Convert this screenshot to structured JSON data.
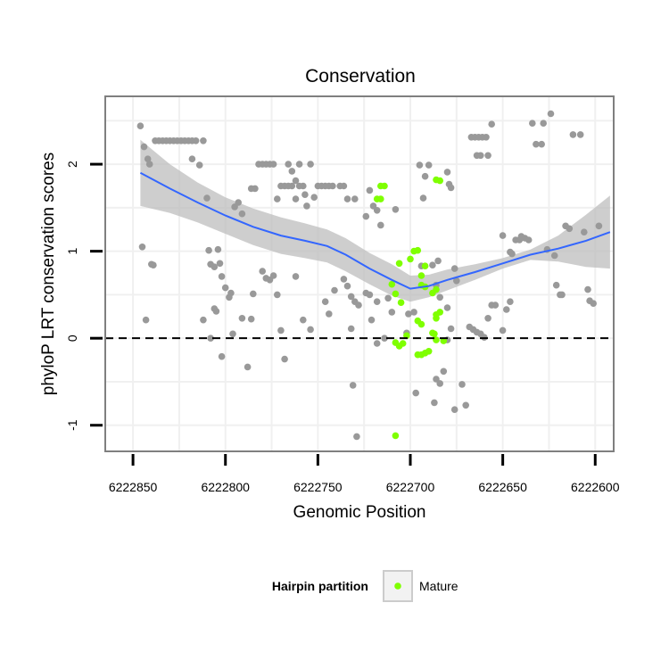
{
  "chart_data": {
    "type": "scatter",
    "title": "Conservation",
    "xlabel": "Genomic Position",
    "ylabel": "phyloP LRT conservation scores",
    "x_reversed": true,
    "xlim": [
      6222865,
      6222590
    ],
    "ylim": [
      -1.3,
      2.78
    ],
    "x_ticks": [
      6222850,
      6222800,
      6222750,
      6222700,
      6222650,
      6222600
    ],
    "x_tick_labels": [
      "6222850",
      "6222800",
      "6222750",
      "6222700",
      "6222650",
      "6222600"
    ],
    "y_ticks": [
      -1,
      0,
      1,
      2
    ],
    "y_tick_labels": [
      "-1",
      "0",
      "1",
      "2"
    ],
    "reference_line": {
      "y": 0,
      "style": "dashed",
      "color": "#000000"
    },
    "colors": {
      "panel_bg": "#ffffff",
      "grid": "#f0f0f0",
      "panel_border": "#7f7f7f",
      "points_default": "#999999",
      "points_mature": "#7fff00",
      "smooth_line": "#3366ff",
      "ribbon": "#bdbdbd"
    },
    "legend": {
      "title": "Hairpin partition",
      "position": "bottom",
      "entries": [
        {
          "label": "Mature",
          "color": "#7fff00"
        }
      ]
    },
    "series": [
      {
        "name": "Other",
        "color": "#999999",
        "points": [
          [
            6222846,
            2.44
          ],
          [
            6222844,
            2.2
          ],
          [
            6222842,
            2.06
          ],
          [
            6222841,
            2.0
          ],
          [
            6222845,
            1.05
          ],
          [
            6222843,
            0.21
          ],
          [
            6222840,
            0.85
          ],
          [
            6222839,
            0.84
          ],
          [
            6222838,
            2.27
          ],
          [
            6222836,
            2.27
          ],
          [
            6222834,
            2.27
          ],
          [
            6222832,
            2.27
          ],
          [
            6222830,
            2.27
          ],
          [
            6222828,
            2.27
          ],
          [
            6222826,
            2.27
          ],
          [
            6222824,
            2.27
          ],
          [
            6222822,
            2.27
          ],
          [
            6222820,
            2.27
          ],
          [
            6222818,
            2.27
          ],
          [
            6222816,
            2.27
          ],
          [
            6222812,
            2.27
          ],
          [
            6222818,
            2.06
          ],
          [
            6222814,
            1.99
          ],
          [
            6222810,
            1.61
          ],
          [
            6222809,
            1.01
          ],
          [
            6222808,
            0.85
          ],
          [
            6222806,
            0.82
          ],
          [
            6222804,
            1.02
          ],
          [
            6222806,
            0.34
          ],
          [
            6222805,
            0.31
          ],
          [
            6222803,
            0.86
          ],
          [
            6222802,
            0.71
          ],
          [
            6222812,
            0.21
          ],
          [
            6222808,
            0.0
          ],
          [
            6222802,
            -0.21
          ],
          [
            6222800,
            0.58
          ],
          [
            6222798,
            0.47
          ],
          [
            6222797,
            0.52
          ],
          [
            6222796,
            0.05
          ],
          [
            6222795,
            1.51
          ],
          [
            6222793,
            1.56
          ],
          [
            6222791,
            1.43
          ],
          [
            6222791,
            0.23
          ],
          [
            6222788,
            -0.33
          ],
          [
            6222786,
            1.72
          ],
          [
            6222784,
            1.72
          ],
          [
            6222785,
            0.51
          ],
          [
            6222786,
            0.22
          ],
          [
            6222782,
            2.0
          ],
          [
            6222780,
            2.0
          ],
          [
            6222778,
            2.0
          ],
          [
            6222776,
            2.0
          ],
          [
            6222774,
            2.0
          ],
          [
            6222780,
            0.77
          ],
          [
            6222778,
            0.69
          ],
          [
            6222776,
            0.67
          ],
          [
            6222774,
            0.72
          ],
          [
            6222772,
            0.5
          ],
          [
            6222770,
            0.09
          ],
          [
            6222768,
            -0.24
          ],
          [
            6222772,
            1.6
          ],
          [
            6222770,
            1.75
          ],
          [
            6222768,
            1.75
          ],
          [
            6222766,
            1.75
          ],
          [
            6222764,
            1.75
          ],
          [
            6222762,
            1.6
          ],
          [
            6222764,
            1.92
          ],
          [
            6222766,
            2.0
          ],
          [
            6222762,
            1.81
          ],
          [
            6222760,
            1.75
          ],
          [
            6222758,
            1.75
          ],
          [
            6222757,
            1.65
          ],
          [
            6222760,
            2.0
          ],
          [
            6222754,
            2.0
          ],
          [
            6222756,
            1.52
          ],
          [
            6222762,
            0.71
          ],
          [
            6222758,
            0.21
          ],
          [
            6222754,
            0.1
          ],
          [
            6222750,
            1.75
          ],
          [
            6222748,
            1.75
          ],
          [
            6222752,
            1.62
          ],
          [
            6222746,
            1.75
          ],
          [
            6222744,
            1.75
          ],
          [
            6222742,
            1.75
          ],
          [
            6222738,
            1.75
          ],
          [
            6222736,
            1.75
          ],
          [
            6222734,
            1.6
          ],
          [
            6222746,
            0.42
          ],
          [
            6222744,
            0.28
          ],
          [
            6222741,
            0.55
          ],
          [
            6222736,
            0.68
          ],
          [
            6222734,
            0.6
          ],
          [
            6222732,
            0.48
          ],
          [
            6222730,
            0.42
          ],
          [
            6222730,
            1.6
          ],
          [
            6222728,
            0.38
          ],
          [
            6222732,
            0.11
          ],
          [
            6222731,
            -0.54
          ],
          [
            6222729,
            -1.13
          ],
          [
            6222724,
            1.4
          ],
          [
            6222722,
            1.7
          ],
          [
            6222720,
            1.52
          ],
          [
            6222718,
            1.47
          ],
          [
            6222716,
            1.3
          ],
          [
            6222724,
            0.52
          ],
          [
            6222722,
            0.5
          ],
          [
            6222721,
            0.21
          ],
          [
            6222718,
            0.42
          ],
          [
            6222718,
            -0.06
          ],
          [
            6222714,
            0.0
          ],
          [
            6222712,
            0.46
          ],
          [
            6222710,
            0.3
          ],
          [
            6222708,
            1.48
          ],
          [
            6222701,
            0.28
          ],
          [
            6222702,
            0.06
          ],
          [
            6222698,
            0.3
          ],
          [
            6222697,
            -0.63
          ],
          [
            6222695,
            1.99
          ],
          [
            6222693,
            1.61
          ],
          [
            6222692,
            1.86
          ],
          [
            6222690,
            1.99
          ],
          [
            6222694,
            0.83
          ],
          [
            6222688,
            0.84
          ],
          [
            6222685,
            0.89
          ],
          [
            6222686,
            0.61
          ],
          [
            6222684,
            0.47
          ],
          [
            6222680,
            1.91
          ],
          [
            6222679,
            1.77
          ],
          [
            6222678,
            1.73
          ],
          [
            6222676,
            0.8
          ],
          [
            6222675,
            0.66
          ],
          [
            6222680,
            0.35
          ],
          [
            6222678,
            0.11
          ],
          [
            6222687,
            -0.74
          ],
          [
            6222684,
            -0.52
          ],
          [
            6222686,
            -0.47
          ],
          [
            6222682,
            -0.38
          ],
          [
            6222680,
            -0.02
          ],
          [
            6222676,
            -0.82
          ],
          [
            6222672,
            -0.53
          ],
          [
            6222670,
            -0.77
          ],
          [
            6222668,
            0.13
          ],
          [
            6222667,
            2.31
          ],
          [
            6222665,
            2.31
          ],
          [
            6222663,
            2.31
          ],
          [
            6222661,
            2.31
          ],
          [
            6222659,
            2.31
          ],
          [
            6222664,
            2.1
          ],
          [
            6222662,
            2.1
          ],
          [
            6222658,
            2.1
          ],
          [
            6222656,
            2.46
          ],
          [
            6222666,
            0.1
          ],
          [
            6222664,
            0.07
          ],
          [
            6222662,
            0.05
          ],
          [
            6222660,
            0.01
          ],
          [
            6222658,
            0.23
          ],
          [
            6222656,
            0.38
          ],
          [
            6222654,
            0.38
          ],
          [
            6222650,
            0.09
          ],
          [
            6222648,
            0.33
          ],
          [
            6222646,
            0.42
          ],
          [
            6222650,
            1.18
          ],
          [
            6222646,
            0.99
          ],
          [
            6222645,
            0.97
          ],
          [
            6222643,
            1.13
          ],
          [
            6222641,
            1.13
          ],
          [
            6222640,
            1.17
          ],
          [
            6222638,
            1.15
          ],
          [
            6222636,
            1.13
          ],
          [
            6222634,
            2.47
          ],
          [
            6222632,
            2.23
          ],
          [
            6222629,
            2.23
          ],
          [
            6222628,
            2.47
          ],
          [
            6222624,
            2.58
          ],
          [
            6222626,
            1.02
          ],
          [
            6222622,
            0.95
          ],
          [
            6222621,
            0.61
          ],
          [
            6222619,
            0.5
          ],
          [
            6222618,
            0.5
          ],
          [
            6222616,
            1.29
          ],
          [
            6222614,
            1.26
          ],
          [
            6222612,
            2.34
          ],
          [
            6222608,
            2.34
          ],
          [
            6222606,
            1.22
          ],
          [
            6222604,
            0.56
          ],
          [
            6222603,
            0.43
          ],
          [
            6222601,
            0.4
          ],
          [
            6222598,
            1.29
          ]
        ]
      },
      {
        "name": "Mature",
        "color": "#7fff00",
        "points": [
          [
            6222716,
            1.75
          ],
          [
            6222714,
            1.75
          ],
          [
            6222718,
            1.6
          ],
          [
            6222716,
            1.6
          ],
          [
            6222706,
            0.86
          ],
          [
            6222710,
            0.62
          ],
          [
            6222708,
            0.51
          ],
          [
            6222705,
            0.41
          ],
          [
            6222700,
            0.91
          ],
          [
            6222698,
            1.0
          ],
          [
            6222696,
            1.01
          ],
          [
            6222694,
            0.72
          ],
          [
            6222692,
            0.83
          ],
          [
            6222694,
            0.61
          ],
          [
            6222692,
            0.59
          ],
          [
            6222688,
            0.52
          ],
          [
            6222686,
            0.56
          ],
          [
            6222686,
            0.27
          ],
          [
            6222684,
            0.3
          ],
          [
            6222686,
            0.23
          ],
          [
            6222688,
            0.06
          ],
          [
            6222687,
            0.05
          ],
          [
            6222686,
            -0.02
          ],
          [
            6222708,
            -0.05
          ],
          [
            6222706,
            -0.09
          ],
          [
            6222704,
            -0.06
          ],
          [
            6222702,
            0.03
          ],
          [
            6222696,
            -0.19
          ],
          [
            6222694,
            -0.19
          ],
          [
            6222692,
            -0.17
          ],
          [
            6222696,
            0.2
          ],
          [
            6222694,
            0.16
          ],
          [
            6222682,
            -0.03
          ],
          [
            6222690,
            -0.15
          ],
          [
            6222684,
            1.81
          ],
          [
            6222686,
            1.82
          ],
          [
            6222708,
            -1.12
          ]
        ]
      }
    ],
    "smooth": {
      "method": "loess",
      "color": "#3366ff",
      "x": [
        6222846,
        6222830,
        6222815,
        6222800,
        6222785,
        6222770,
        6222757,
        6222745,
        6222735,
        6222722,
        6222710,
        6222700,
        6222690,
        6222680,
        6222665,
        6222650,
        6222635,
        6222620,
        6222605,
        6222592
      ],
      "y": [
        1.9,
        1.72,
        1.56,
        1.41,
        1.28,
        1.18,
        1.12,
        1.06,
        0.96,
        0.8,
        0.67,
        0.57,
        0.6,
        0.67,
        0.76,
        0.86,
        0.96,
        1.03,
        1.12,
        1.22
      ],
      "lower": [
        1.52,
        1.44,
        1.33,
        1.2,
        1.07,
        0.97,
        0.92,
        0.87,
        0.77,
        0.62,
        0.49,
        0.42,
        0.47,
        0.55,
        0.67,
        0.8,
        0.9,
        0.88,
        0.82,
        0.8
      ],
      "upper": [
        2.28,
        2.0,
        1.79,
        1.62,
        1.49,
        1.39,
        1.32,
        1.25,
        1.15,
        0.98,
        0.85,
        0.72,
        0.73,
        0.79,
        0.85,
        0.92,
        1.02,
        1.18,
        1.42,
        1.64
      ]
    }
  }
}
